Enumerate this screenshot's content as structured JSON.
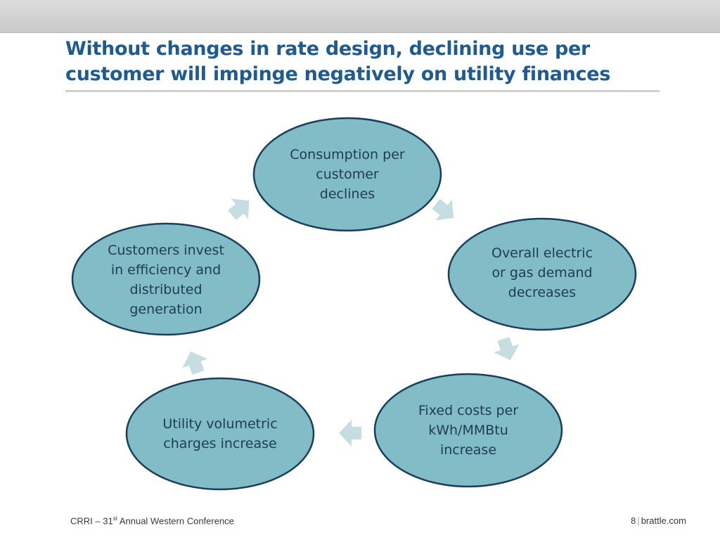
{
  "slide": {
    "title_line1": "Without changes in rate design, declining use per",
    "title_line2": "customer will impinge negatively on utility finances"
  },
  "cycle": {
    "nodes": [
      {
        "id": "consumption",
        "text": "Consumption per\ncustomer\ndeclines"
      },
      {
        "id": "demand",
        "text": "Overall  electric\nor gas demand\ndecreases"
      },
      {
        "id": "fixed-costs",
        "text": "Fixed costs per\nkWh/MMBtu\nincrease"
      },
      {
        "id": "charges",
        "text": "Utility volumetric\ncharges increase"
      },
      {
        "id": "invest",
        "text": "Customers invest\nin efficiency and\ndistributed\ngeneration"
      }
    ],
    "colors": {
      "node_fill": "#82bcc6",
      "node_stroke": "#1a3f5c",
      "arrow_fill": "#c6dde2",
      "title": "#1f5b8f"
    }
  },
  "footer": {
    "event_prefix": "CRRI – 31",
    "event_sup": "st",
    "event_suffix": " Annual Western Conference",
    "page_number": "8",
    "separator": "|",
    "site": "brattle.com"
  }
}
